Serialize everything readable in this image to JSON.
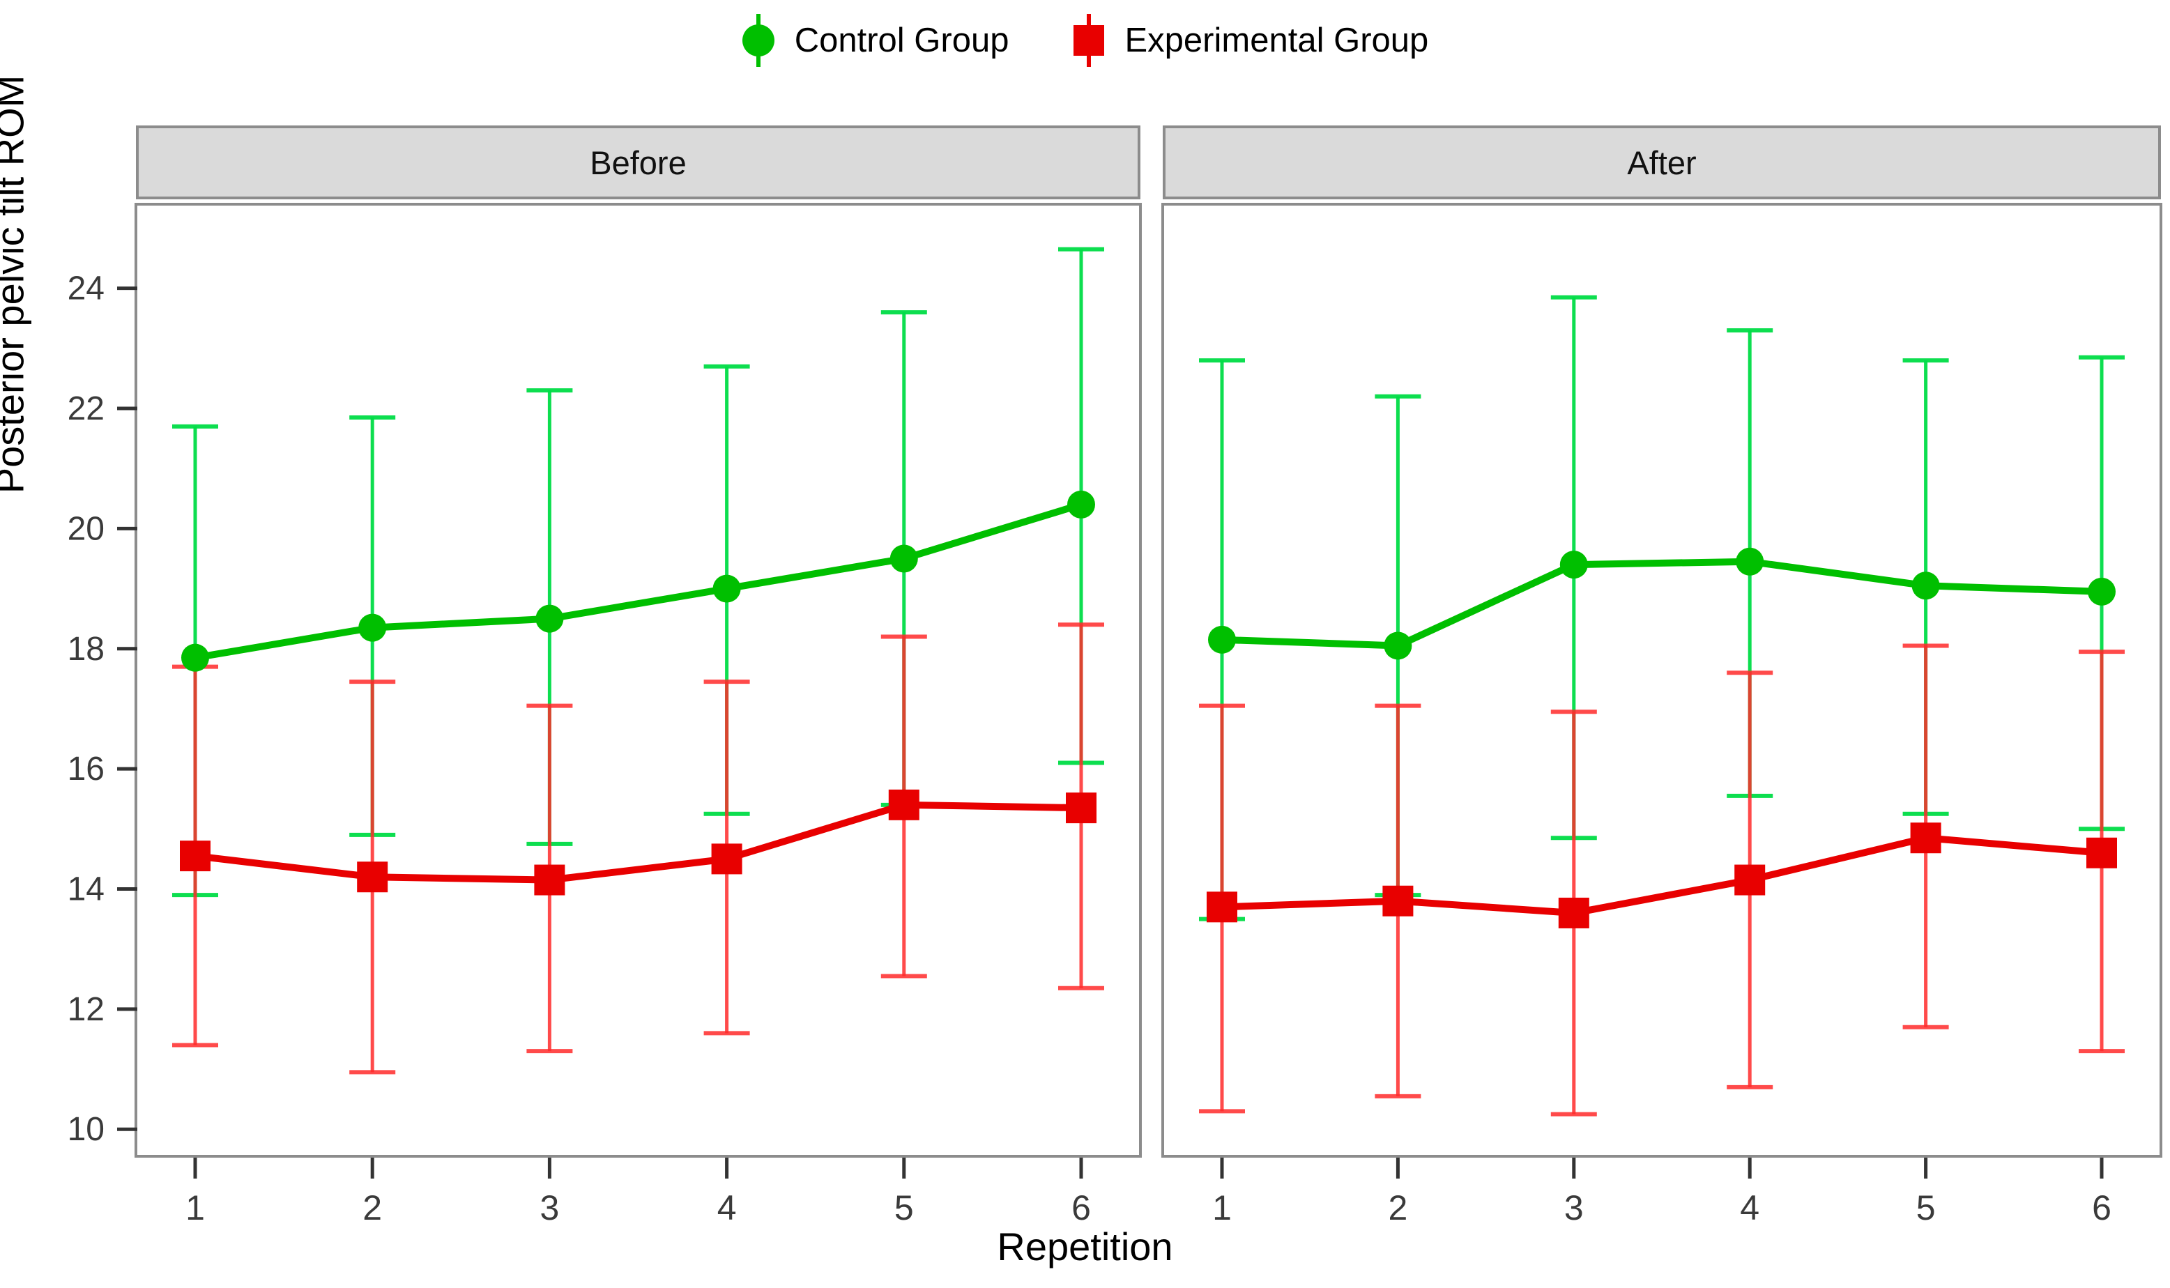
{
  "chart_data": {
    "type": "line",
    "title": "",
    "xlabel": "Repetition",
    "ylabel": "Posterior pelvic tilt ROM",
    "x": [
      1,
      2,
      3,
      4,
      5,
      6
    ],
    "x_tick_labels": [
      "1",
      "2",
      "3",
      "4",
      "5",
      "6"
    ],
    "y_ticks": [
      10,
      12,
      14,
      16,
      18,
      20,
      22,
      24
    ],
    "ylim": [
      9.55,
      25.4
    ],
    "grid": false,
    "legend_position": "top-center",
    "legend": [
      {
        "label": "Control Group",
        "color": "#00BF00",
        "marker": "circle"
      },
      {
        "label": "Experimental Group",
        "color": "#E80000",
        "marker": "square"
      }
    ],
    "facets": [
      {
        "title": "Before",
        "series": [
          {
            "name": "Control Group",
            "color": "#00BF00",
            "errorbar_color": "#00DC46",
            "marker": "circle",
            "values": [
              17.85,
              18.35,
              18.5,
              19.0,
              19.5,
              20.4
            ],
            "upper": [
              21.7,
              21.85,
              22.3,
              22.7,
              23.6,
              24.65
            ],
            "lower": [
              13.9,
              14.9,
              14.75,
              15.25,
              15.4,
              16.1
            ]
          },
          {
            "name": "Experimental Group",
            "color": "#E80000",
            "errorbar_color": "#FF2A2A",
            "marker": "square",
            "values": [
              14.55,
              14.2,
              14.15,
              14.5,
              15.4,
              15.35
            ],
            "upper": [
              17.7,
              17.45,
              17.05,
              17.45,
              18.2,
              18.4
            ],
            "lower": [
              11.4,
              10.95,
              11.3,
              11.6,
              12.55,
              12.35
            ]
          }
        ]
      },
      {
        "title": "After",
        "series": [
          {
            "name": "Control Group",
            "color": "#00BF00",
            "errorbar_color": "#00DC46",
            "marker": "circle",
            "values": [
              18.15,
              18.05,
              19.4,
              19.45,
              19.05,
              18.95
            ],
            "upper": [
              22.8,
              22.2,
              23.85,
              23.3,
              22.8,
              22.85
            ],
            "lower": [
              13.5,
              13.9,
              14.85,
              15.55,
              15.25,
              15.0
            ]
          },
          {
            "name": "Experimental Group",
            "color": "#E80000",
            "errorbar_color": "#FF2A2A",
            "marker": "square",
            "values": [
              13.7,
              13.8,
              13.6,
              14.15,
              14.85,
              14.6
            ],
            "upper": [
              17.05,
              17.05,
              16.95,
              17.6,
              18.05,
              17.95
            ],
            "lower": [
              10.3,
              10.55,
              10.25,
              10.7,
              11.7,
              11.3
            ]
          }
        ]
      }
    ]
  }
}
